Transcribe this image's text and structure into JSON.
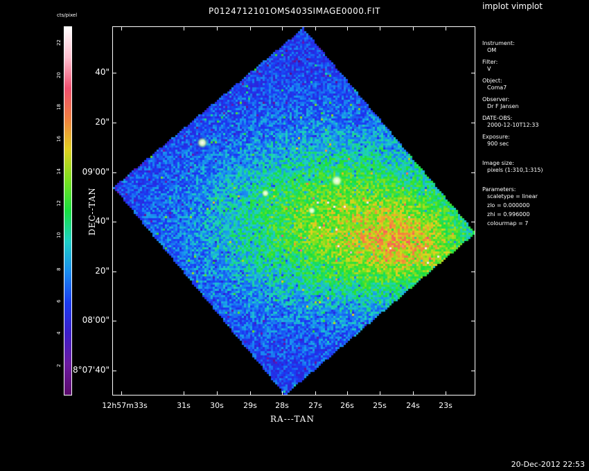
{
  "app": {
    "title": "implot vimplot"
  },
  "plot": {
    "title": "P0124712101OMS403SIMAGE0000.FIT"
  },
  "colorbar": {
    "label": "cts/pixel",
    "ticks": [
      "2",
      "4",
      "6",
      "8",
      "10",
      "12",
      "14",
      "16",
      "18",
      "20",
      "22"
    ],
    "colors": [
      "#5a0a6b",
      "#6b1aa0",
      "#3c1ec8",
      "#1a3cf0",
      "#1a8cf0",
      "#1ecfc8",
      "#18e040",
      "#7ae020",
      "#e0d020",
      "#f08040",
      "#f05070",
      "#ffc0d0",
      "#ffffff"
    ]
  },
  "axes": {
    "xlabel": "RA---TAN",
    "ylabel": "DEC--TAN",
    "xticks": [
      "12h57m33s",
      "31s",
      "30s",
      "29s",
      "28s",
      "27s",
      "26s",
      "25s",
      "24s",
      "23s"
    ],
    "yticks": [
      "8°07'40\"",
      "08'00\"",
      "20\"",
      "40\"",
      "09'00\"",
      "20\"",
      "40\""
    ]
  },
  "info": [
    {
      "key": "Instrument:",
      "value": "OM"
    },
    {
      "key": "Filter:",
      "value": "V"
    },
    {
      "key": "Object:",
      "value": "Coma7"
    },
    {
      "key": "Observer:",
      "value": "Dr F Jansen"
    },
    {
      "key": "DATE-OBS:",
      "value": "2000-12-10T12:33"
    },
    {
      "key": "Exposure:",
      "value": "900 sec"
    },
    {
      "key": "Image size:",
      "value": "pixels (1:310,1:315)"
    },
    {
      "key": "Parameters:",
      "value": "scaletype = linear",
      "extra": [
        "zlo = 0.000000",
        "zhi = 0.996000",
        "colourmap =   7"
      ]
    }
  ],
  "footer": {
    "timestamp": "20-Dec-2012 22:53"
  },
  "chart_data": {
    "type": "heatmap",
    "title": "P0124712101OMS403SIMAGE0000.FIT",
    "xlabel": "RA---TAN",
    "ylabel": "DEC--TAN",
    "colorbar_label": "cts/pixel",
    "colorbar_range": [
      0,
      23
    ],
    "colormap": 7,
    "scaletype": "linear"
  }
}
